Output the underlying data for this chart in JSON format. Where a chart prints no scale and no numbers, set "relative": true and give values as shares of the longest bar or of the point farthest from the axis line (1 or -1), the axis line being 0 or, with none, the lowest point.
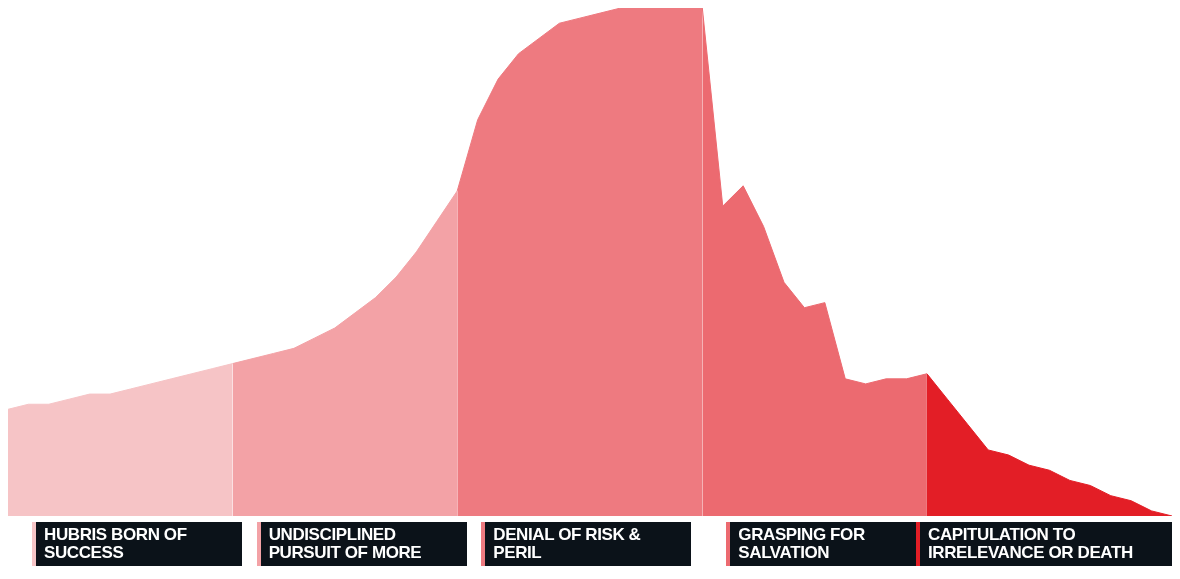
{
  "chart_data": {
    "type": "area",
    "relative": true,
    "categories": [
      null,
      null,
      null,
      null,
      null,
      null,
      null,
      null,
      null,
      null,
      null,
      null,
      null,
      null,
      null,
      null,
      null,
      null,
      null,
      null,
      null,
      null,
      null,
      null,
      null,
      null,
      null,
      null,
      null,
      null,
      null,
      null,
      null,
      null,
      null,
      null,
      null,
      null,
      null,
      null,
      null,
      null,
      null,
      null,
      null,
      null,
      null,
      null,
      null,
      null,
      null,
      null,
      null,
      null,
      null,
      null,
      null,
      null
    ],
    "series": [
      {
        "name": "HUBRIS BORN OF SUCCESS",
        "color": "#f6c4c6",
        "values": [
          0.21,
          0.22,
          0.22,
          0.23,
          0.24,
          0.24,
          0.25,
          0.26,
          0.27,
          0.28,
          0.29,
          0.3,
          null,
          null,
          null,
          null,
          null,
          null,
          null,
          null,
          null,
          null,
          null,
          null,
          null,
          null,
          null,
          null,
          null,
          null,
          null,
          null,
          null,
          null,
          null,
          null,
          null,
          null,
          null,
          null,
          null,
          null,
          null,
          null,
          null,
          null,
          null,
          null,
          null,
          null,
          null,
          null,
          null,
          null,
          null,
          null,
          null,
          null
        ]
      },
      {
        "name": "UNDISCIPLINED PURSUIT OF MORE",
        "color": "#f3a2a6",
        "values": [
          null,
          null,
          null,
          null,
          null,
          null,
          null,
          null,
          null,
          null,
          null,
          0.3,
          0.31,
          0.32,
          0.33,
          0.35,
          0.37,
          0.4,
          0.43,
          0.47,
          0.52,
          0.58,
          0.64,
          null,
          null,
          null,
          null,
          null,
          null,
          null,
          null,
          null,
          null,
          null,
          null,
          null,
          null,
          null,
          null,
          null,
          null,
          null,
          null,
          null,
          null,
          null,
          null,
          null,
          null,
          null,
          null,
          null,
          null,
          null,
          null,
          null,
          null,
          null
        ]
      },
      {
        "name": "DENIAL OF RISK & PERIL",
        "color": "#ee7a80",
        "values": [
          null,
          null,
          null,
          null,
          null,
          null,
          null,
          null,
          null,
          null,
          null,
          null,
          null,
          null,
          null,
          null,
          null,
          null,
          null,
          null,
          null,
          null,
          0.64,
          0.78,
          0.86,
          0.91,
          0.94,
          0.97,
          0.98,
          0.99,
          1,
          1,
          1,
          1,
          1,
          null,
          null,
          null,
          null,
          null,
          null,
          null,
          null,
          null,
          null,
          null,
          null,
          null,
          null,
          null,
          null,
          null,
          null,
          null,
          null,
          null,
          null,
          null
        ]
      },
      {
        "name": "GRASPING FOR SALVATION",
        "color": "#ec6a70",
        "values": [
          null,
          null,
          null,
          null,
          null,
          null,
          null,
          null,
          null,
          null,
          null,
          null,
          null,
          null,
          null,
          null,
          null,
          null,
          null,
          null,
          null,
          null,
          null,
          null,
          null,
          null,
          null,
          null,
          null,
          null,
          null,
          null,
          null,
          null,
          1,
          0.61,
          0.65,
          0.57,
          0.46,
          0.41,
          0.42,
          0.27,
          0.26,
          0.27,
          0.27,
          0.28,
          null,
          null,
          null,
          null,
          null,
          null,
          null,
          null,
          null,
          null,
          null,
          null
        ]
      },
      {
        "name": "CAPITULATION TO IRRELEVANCE OR DEATH",
        "color": "#e31e26",
        "values": [
          null,
          null,
          null,
          null,
          null,
          null,
          null,
          null,
          null,
          null,
          null,
          null,
          null,
          null,
          null,
          null,
          null,
          null,
          null,
          null,
          null,
          null,
          null,
          null,
          null,
          null,
          null,
          null,
          null,
          null,
          null,
          null,
          null,
          null,
          null,
          null,
          null,
          null,
          null,
          null,
          null,
          null,
          null,
          null,
          null,
          0.28,
          0.23,
          0.18,
          0.13,
          0.12,
          0.1,
          0.09,
          0.07,
          0.06,
          0.04,
          0.03,
          0.01,
          0
        ]
      }
    ]
  }
}
